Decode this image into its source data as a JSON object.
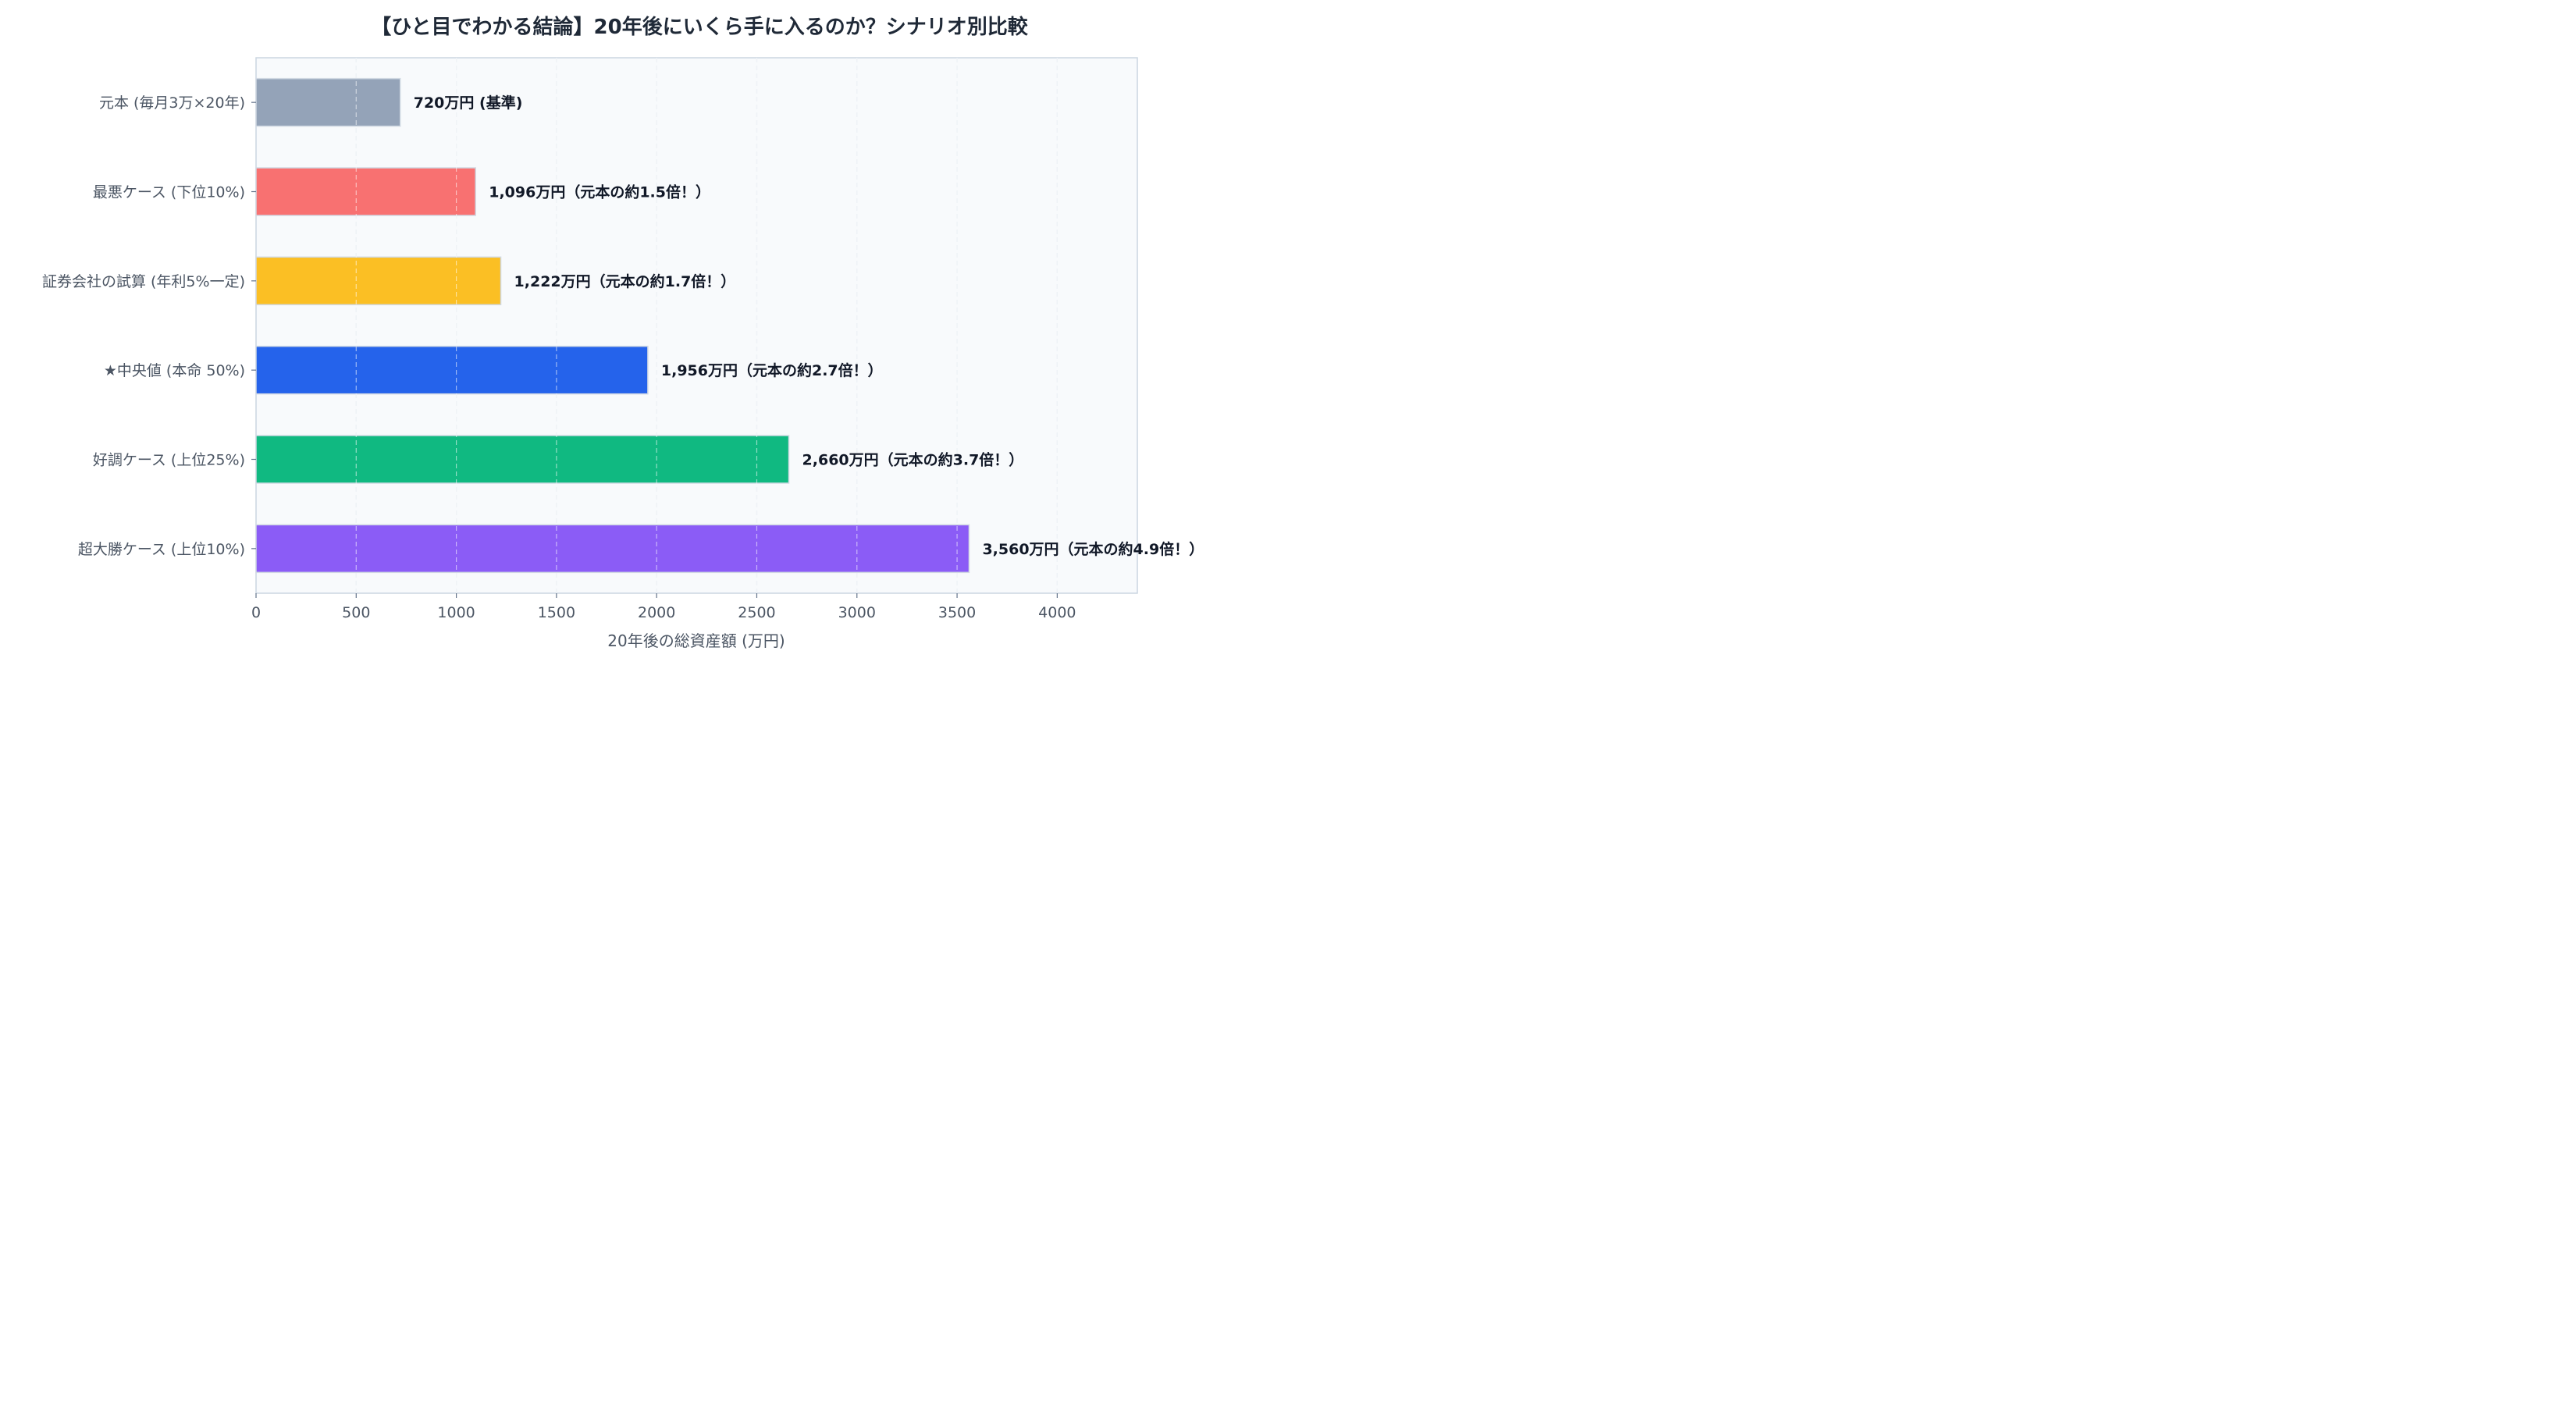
{
  "chart_data": {
    "type": "bar",
    "orientation": "horizontal",
    "title": "【ひと目でわかる結論】20年後にいくら手に入るのか？シナリオ別比較",
    "xlabel": "20年後の総資産額 (万円)",
    "ylabel": "",
    "xlim": [
      0,
      4400
    ],
    "xticks": [
      0,
      500,
      1000,
      1500,
      2000,
      2500,
      3000,
      3500,
      4000
    ],
    "grid": true,
    "categories": [
      "元本 (毎月3万×20年)",
      "最悪ケース (下位10%)",
      "証券会社の試算 (年利5%一定)",
      "★中央値 (本命 50%)",
      "好調ケース (上位25%)",
      "超大勝ケース (上位10%)"
    ],
    "values": [
      720,
      1096,
      1222,
      1956,
      2660,
      3560
    ],
    "colors": [
      "#94a3b8",
      "#f87171",
      "#fbbf24",
      "#2563eb",
      "#10b981",
      "#8b5cf6"
    ],
    "data_labels": [
      "720万円 (基準)",
      "1,096万円（元本の約1.5倍！）",
      "1,222万円（元本の約1.7倍！）",
      "1,956万円（元本の約2.7倍！）",
      "2,660万円（元本の約3.7倍！）",
      "3,560万円（元本の約4.9倍！）"
    ]
  }
}
